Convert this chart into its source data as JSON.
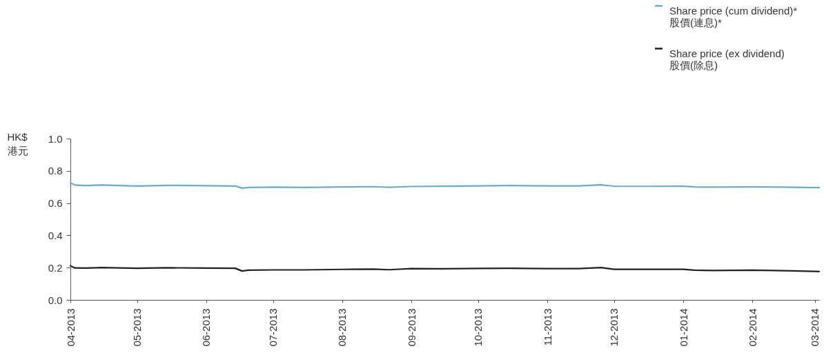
{
  "chart_data": {
    "type": "line",
    "ylabel": "HK$\n港元",
    "x": [
      "2013-04-01",
      "2013-04-03",
      "2013-04-08",
      "2013-04-15",
      "2013-05-01",
      "2013-05-15",
      "2013-06-01",
      "2013-06-14",
      "2013-06-17",
      "2013-06-20",
      "2013-07-01",
      "2013-07-15",
      "2013-08-01",
      "2013-08-15",
      "2013-08-22",
      "2013-09-01",
      "2013-09-15",
      "2013-10-01",
      "2013-10-15",
      "2013-11-01",
      "2013-11-15",
      "2013-11-25",
      "2013-12-01",
      "2013-12-15",
      "2014-01-01",
      "2014-01-06",
      "2014-01-15",
      "2014-02-01",
      "2014-02-15",
      "2014-03-01",
      "2014-03-03"
    ],
    "series": [
      {
        "name": "Share price (cum dividend)*\n股價(連息)*",
        "color": "#6aadc9",
        "values": [
          0.726,
          0.712,
          0.709,
          0.712,
          0.706,
          0.71,
          0.708,
          0.706,
          0.693,
          0.697,
          0.699,
          0.697,
          0.7,
          0.702,
          0.698,
          0.703,
          0.705,
          0.707,
          0.709,
          0.707,
          0.707,
          0.713,
          0.705,
          0.704,
          0.705,
          0.7,
          0.699,
          0.7,
          0.699,
          0.696,
          0.696
        ]
      },
      {
        "name": "Share price (ex dividend)\n股價(除息)",
        "color": "#231f20",
        "values": [
          0.212,
          0.198,
          0.197,
          0.2,
          0.196,
          0.199,
          0.197,
          0.196,
          0.179,
          0.184,
          0.186,
          0.186,
          0.189,
          0.191,
          0.187,
          0.194,
          0.193,
          0.195,
          0.196,
          0.194,
          0.194,
          0.2,
          0.19,
          0.19,
          0.19,
          0.184,
          0.182,
          0.184,
          0.181,
          0.177,
          0.176
        ]
      }
    ],
    "xlim": [
      "2013-04-01",
      "2014-03-03"
    ],
    "xticks": [
      {
        "value": "2013-04-01",
        "label": "04-2013"
      },
      {
        "value": "2013-05-01",
        "label": "05-2013"
      },
      {
        "value": "2013-06-01",
        "label": "06-2013"
      },
      {
        "value": "2013-07-01",
        "label": "07-2013"
      },
      {
        "value": "2013-08-01",
        "label": "08-2013"
      },
      {
        "value": "2013-09-01",
        "label": "09-2013"
      },
      {
        "value": "2013-10-01",
        "label": "10-2013"
      },
      {
        "value": "2013-11-01",
        "label": "11-2013"
      },
      {
        "value": "2013-12-01",
        "label": "12-2013"
      },
      {
        "value": "2014-01-01",
        "label": "01-2014"
      },
      {
        "value": "2014-02-01",
        "label": "02-2014"
      },
      {
        "value": "2014-03-01",
        "label": "03-2014"
      }
    ],
    "ylim": [
      0,
      1.0
    ],
    "yticks": [
      {
        "value": 0,
        "label": "0.0"
      },
      {
        "value": 0.2,
        "label": "0.2"
      },
      {
        "value": 0.4,
        "label": "0.4"
      },
      {
        "value": 0.6,
        "label": "0.6"
      },
      {
        "value": 0.8,
        "label": "0.8"
      },
      {
        "value": 1.0,
        "label": "1.0"
      }
    ],
    "grid": false,
    "legend": "top right",
    "marker": "none",
    "line_style": "solid"
  }
}
